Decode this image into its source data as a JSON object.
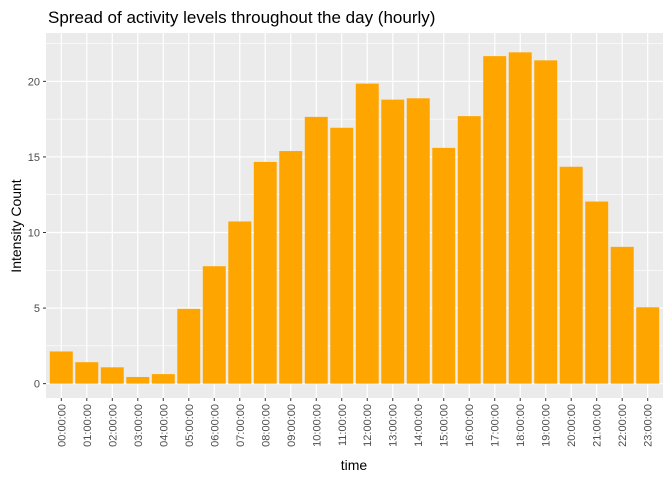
{
  "chart_data": {
    "type": "bar",
    "title": "Spread of activity levels throughout the day (hourly)",
    "xlabel": "time",
    "ylabel": "Intensity Count",
    "categories": [
      "00:00:00",
      "01:00:00",
      "02:00:00",
      "03:00:00",
      "04:00:00",
      "05:00:00",
      "06:00:00",
      "07:00:00",
      "08:00:00",
      "09:00:00",
      "10:00:00",
      "11:00:00",
      "12:00:00",
      "13:00:00",
      "14:00:00",
      "15:00:00",
      "16:00:00",
      "17:00:00",
      "18:00:00",
      "19:00:00",
      "20:00:00",
      "21:00:00",
      "22:00:00",
      "23:00:00"
    ],
    "values": [
      2.13,
      1.42,
      1.08,
      0.44,
      0.63,
      4.95,
      7.77,
      10.73,
      14.67,
      15.39,
      17.65,
      16.93,
      19.85,
      18.79,
      18.88,
      15.6,
      17.7,
      21.67,
      21.92,
      21.39,
      14.35,
      12.05,
      9.05,
      5.05
    ],
    "ylim": [
      -0.95,
      23.2
    ],
    "yticks": [
      0,
      5,
      10,
      15,
      20
    ],
    "ytick_labels": [
      "0",
      "5",
      "10",
      "15",
      "20"
    ],
    "bar_color": "#FFA500",
    "panel_background": "#EBEBEB",
    "grid_color": "#FFFFFF",
    "grid": true,
    "legend": "none"
  }
}
